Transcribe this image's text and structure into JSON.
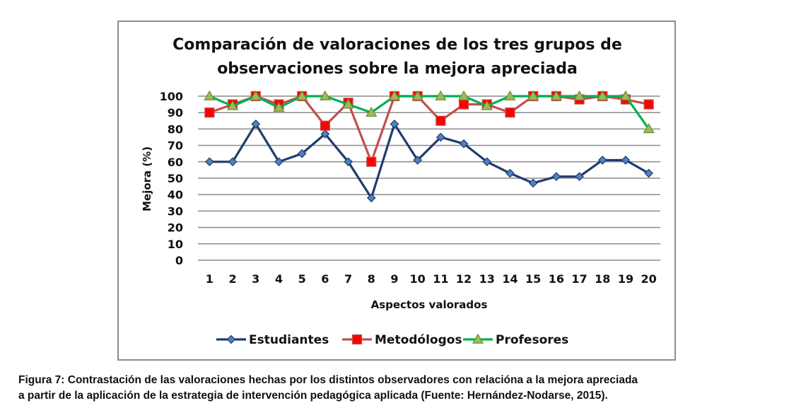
{
  "chart_data": {
    "type": "line",
    "title": [
      "Comparación de valoraciones  de los tres grupos de",
      "observaciones sobre  la mejora apreciada"
    ],
    "xlabel": "Aspectos valorados",
    "ylabel": "Mejora (%)",
    "ylim": [
      0,
      100
    ],
    "y_ticks": [
      0,
      10,
      20,
      30,
      40,
      50,
      60,
      70,
      80,
      90,
      100
    ],
    "categories": [
      "1",
      "2",
      "3",
      "4",
      "5",
      "6",
      "7",
      "8",
      "9",
      "10",
      "11",
      "12",
      "13",
      "14",
      "15",
      "16",
      "17",
      "18",
      "19",
      "20"
    ],
    "grid": true,
    "legend_position": "bottom",
    "series": [
      {
        "name": "Estudiantes",
        "color": "#1f3b6e",
        "marker": "diamond",
        "marker_color": "#4f81bd",
        "values": [
          60,
          60,
          83,
          60,
          65,
          77,
          60,
          38,
          83,
          61,
          75,
          71,
          60,
          53,
          47,
          51,
          51,
          61,
          61,
          53
        ]
      },
      {
        "name": "Metodólogos",
        "color": "#c0504d",
        "marker": "square",
        "marker_color": "#ff0000",
        "values": [
          90,
          95,
          100,
          95,
          100,
          82,
          96,
          60,
          100,
          100,
          85,
          95,
          95,
          90,
          100,
          100,
          98,
          100,
          98,
          95
        ]
      },
      {
        "name": "Profesores",
        "color": "#00b050",
        "marker": "triangle",
        "marker_color": "#9bbb59",
        "values": [
          100,
          94,
          100,
          93,
          100,
          100,
          95,
          90,
          100,
          100,
          100,
          100,
          94,
          100,
          100,
          100,
          100,
          100,
          100,
          80
        ]
      }
    ]
  },
  "caption": {
    "line1": "Figura 7: Contrastación de las valoraciones hechas por los distintos observadores con relacióna a la mejora apreciada",
    "line2": "a partir de la aplicación de la estrategia de intervención pedagógica aplicada (Fuente: Hernández-Nodarse, 2015)."
  }
}
